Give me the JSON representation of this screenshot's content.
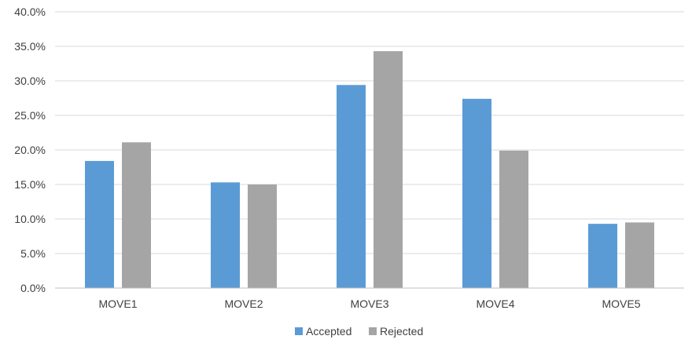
{
  "chart_data": {
    "type": "bar",
    "title": "",
    "xlabel": "",
    "ylabel": "",
    "categories": [
      "MOVE1",
      "MOVE2",
      "MOVE3",
      "MOVE4",
      "MOVE5"
    ],
    "series": [
      {
        "name": "Accepted",
        "color": "#5b9bd5",
        "values": [
          18.4,
          15.3,
          29.4,
          27.4,
          9.3
        ]
      },
      {
        "name": "Rejected",
        "color": "#a5a5a5",
        "values": [
          21.1,
          15.0,
          34.3,
          19.9,
          9.5
        ]
      }
    ],
    "ylim": [
      0,
      40
    ],
    "yticks": [
      0,
      5,
      10,
      15,
      20,
      25,
      30,
      35,
      40
    ],
    "ytick_labels": [
      "0.0%",
      "5.0%",
      "10.0%",
      "15.0%",
      "20.0%",
      "25.0%",
      "30.0%",
      "35.0%",
      "40.0%"
    ],
    "grid": true,
    "legend_position": "bottom-center"
  }
}
